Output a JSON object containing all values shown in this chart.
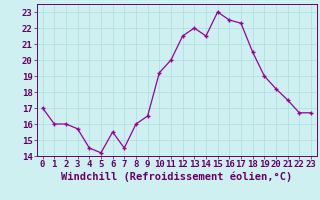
{
  "x": [
    0,
    1,
    2,
    3,
    4,
    5,
    6,
    7,
    8,
    9,
    10,
    11,
    12,
    13,
    14,
    15,
    16,
    17,
    18,
    19,
    20,
    21,
    22,
    23
  ],
  "y": [
    17.0,
    16.0,
    16.0,
    15.7,
    14.5,
    14.2,
    15.5,
    14.5,
    16.0,
    16.5,
    19.2,
    20.0,
    21.5,
    22.0,
    21.5,
    23.0,
    22.5,
    22.3,
    20.5,
    19.0,
    18.2,
    17.5,
    16.7,
    16.7
  ],
  "line_color": "#990099",
  "marker": "+",
  "marker_size": 3,
  "bg_color": "#cff0f0",
  "grid_color": "#aadddd",
  "xlabel": "Windchill (Refroidissement éolien,°C)",
  "ylim": [
    14,
    23.5
  ],
  "xlim": [
    -0.5,
    23.5
  ],
  "yticks": [
    14,
    15,
    16,
    17,
    18,
    19,
    20,
    21,
    22,
    23
  ],
  "xticks": [
    0,
    1,
    2,
    3,
    4,
    5,
    6,
    7,
    8,
    9,
    10,
    11,
    12,
    13,
    14,
    15,
    16,
    17,
    18,
    19,
    20,
    21,
    22,
    23
  ],
  "xlabel_fontsize": 7.5,
  "tick_fontsize": 6.5,
  "tick_color": "#660066",
  "spine_color": "#660066",
  "xlabel_color": "#660066"
}
